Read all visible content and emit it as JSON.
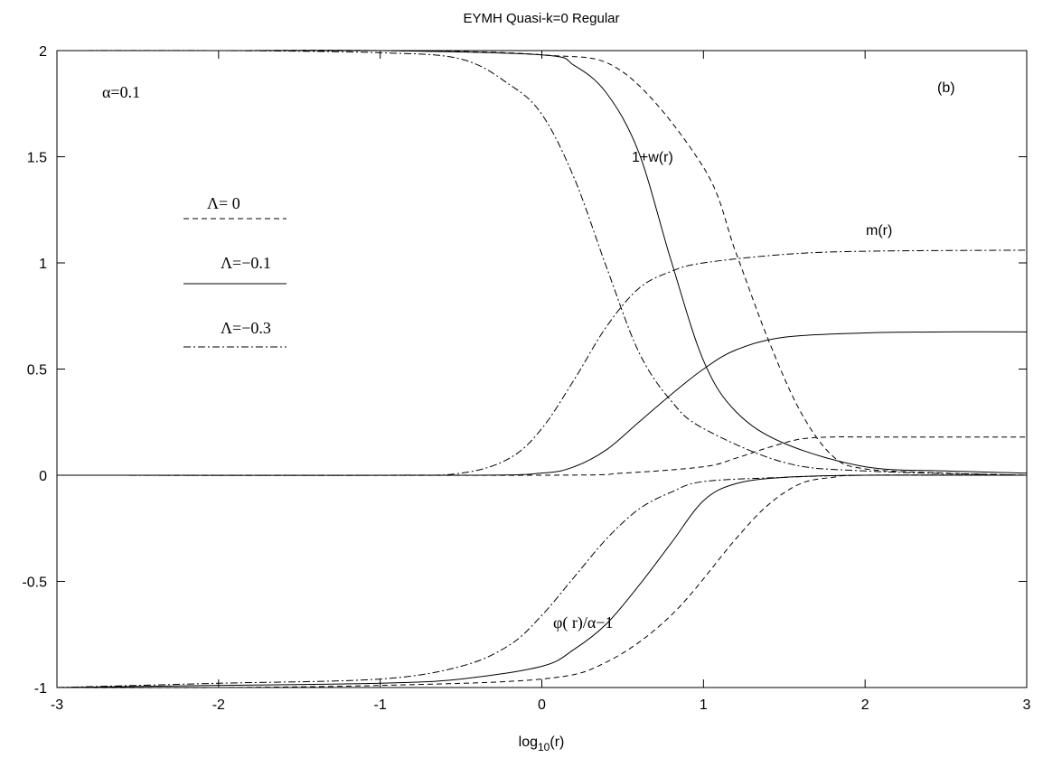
{
  "chart_data": {
    "type": "line",
    "title": "EYMH Quasi-k=0 Regular",
    "xlabel": "log10(r)",
    "xlabel_main": "log",
    "xlabel_sub": "10",
    "xlabel_tail": "(r)",
    "ylabel": "",
    "xlim": [
      -3,
      3
    ],
    "ylim": [
      -1,
      2
    ],
    "x_ticks": [
      {
        "value": -3,
        "label": "-3"
      },
      {
        "value": -2,
        "label": "-2"
      },
      {
        "value": -1,
        "label": "-1"
      },
      {
        "value": 0,
        "label": "0"
      },
      {
        "value": 1,
        "label": "1"
      },
      {
        "value": 2,
        "label": "2"
      },
      {
        "value": 3,
        "label": "3"
      }
    ],
    "y_ticks": [
      {
        "value": -1,
        "label": "-1"
      },
      {
        "value": -0.5,
        "label": "-0.5"
      },
      {
        "value": 0,
        "label": "0"
      },
      {
        "value": 0.5,
        "label": "0.5"
      },
      {
        "value": 1,
        "label": "1"
      },
      {
        "value": 1.5,
        "label": "1.5"
      },
      {
        "value": 2,
        "label": "2"
      }
    ],
    "grid": false,
    "legend_position": "left",
    "annotations": {
      "alpha": "α=0.1",
      "panel": "(b)",
      "w_curve": "1+w(r)",
      "m_curve": "m(r)",
      "phi_curve": "φ( r)/α−1"
    },
    "legend": [
      {
        "label": "Λ= 0",
        "style": "dashed"
      },
      {
        "label": "Λ=−0.1",
        "style": "solid"
      },
      {
        "label": "Λ=−0.3",
        "style": "dashdot"
      }
    ],
    "series": [
      {
        "group": "1+w(r)",
        "lambda": "Λ= 0",
        "style": "dashed",
        "x": [
          -3,
          -2,
          -1,
          0,
          0.5,
          1,
          1.2,
          1.4,
          1.6,
          1.8,
          2,
          2.5,
          3
        ],
        "y": [
          2,
          2,
          2,
          1.98,
          1.9,
          1.45,
          1.05,
          0.64,
          0.3,
          0.09,
          0.03,
          0.01,
          0
        ]
      },
      {
        "group": "1+w(r)",
        "lambda": "Λ=−0.1",
        "style": "solid",
        "x": [
          -3,
          -2,
          -1,
          0,
          0.2,
          0.4,
          0.6,
          0.8,
          1,
          1.2,
          1.5,
          2,
          2.5,
          3
        ],
        "y": [
          2,
          2,
          2,
          1.98,
          1.93,
          1.8,
          1.52,
          1.01,
          0.54,
          0.3,
          0.15,
          0.04,
          0.02,
          0.01
        ]
      },
      {
        "group": "1+w(r)",
        "lambda": "Λ=−0.3",
        "style": "dashdot",
        "x": [
          -3,
          -2,
          -1,
          -0.5,
          -0.2,
          0,
          0.2,
          0.4,
          0.6,
          0.8,
          1,
          1.5,
          2,
          3
        ],
        "y": [
          2,
          2,
          1.99,
          1.96,
          1.84,
          1.7,
          1.4,
          0.98,
          0.58,
          0.35,
          0.22,
          0.06,
          0.02,
          0
        ]
      },
      {
        "group": "m(r)",
        "lambda": "Λ= 0",
        "style": "dashed",
        "x": [
          -3,
          0,
          0.5,
          1,
          1.2,
          1.4,
          1.6,
          1.8,
          2,
          2.5,
          3
        ],
        "y": [
          0,
          0,
          0.01,
          0.04,
          0.08,
          0.13,
          0.17,
          0.18,
          0.18,
          0.18,
          0.18
        ]
      },
      {
        "group": "m(r)",
        "lambda": "Λ=−0.1",
        "style": "solid",
        "x": [
          -3,
          -0.5,
          0,
          0.2,
          0.4,
          0.6,
          0.8,
          1,
          1.2,
          1.5,
          2,
          2.5,
          3
        ],
        "y": [
          0,
          0,
          0.01,
          0.04,
          0.12,
          0.25,
          0.38,
          0.5,
          0.59,
          0.65,
          0.67,
          0.675,
          0.675
        ]
      },
      {
        "group": "m(r)",
        "lambda": "Λ=−0.3",
        "style": "dashdot",
        "x": [
          -3,
          -1,
          -0.5,
          -0.2,
          0,
          0.2,
          0.4,
          0.6,
          0.8,
          1,
          1.5,
          2,
          3
        ],
        "y": [
          0,
          0,
          0.01,
          0.08,
          0.22,
          0.45,
          0.7,
          0.88,
          0.96,
          1,
          1.04,
          1.055,
          1.06
        ]
      },
      {
        "group": "φ(r)/α−1",
        "lambda": "Λ= 0",
        "style": "dashed",
        "x": [
          -3,
          -2,
          -1,
          0,
          0.4,
          0.8,
          1.2,
          1.4,
          1.6,
          1.8,
          2,
          3
        ],
        "y": [
          -1,
          -1,
          -0.99,
          -0.96,
          -0.88,
          -0.66,
          -0.3,
          -0.14,
          -0.04,
          -0.01,
          0,
          0
        ]
      },
      {
        "group": "φ(r)/α−1",
        "lambda": "Λ=−0.1",
        "style": "solid",
        "x": [
          -3,
          -2,
          -1,
          -0.5,
          0,
          0.2,
          0.4,
          0.6,
          0.8,
          1,
          1.2,
          1.5,
          2,
          3
        ],
        "y": [
          -1,
          -0.99,
          -0.98,
          -0.96,
          -0.9,
          -0.82,
          -0.7,
          -0.52,
          -0.32,
          -0.12,
          -0.04,
          -0.01,
          0,
          0
        ]
      },
      {
        "group": "φ(r)/α−1",
        "lambda": "Λ=−0.3",
        "style": "dashdot",
        "x": [
          -3,
          -2,
          -1,
          -0.5,
          -0.2,
          0,
          0.2,
          0.4,
          0.6,
          0.8,
          1,
          1.5,
          2,
          3
        ],
        "y": [
          -1,
          -0.98,
          -0.96,
          -0.9,
          -0.8,
          -0.66,
          -0.48,
          -0.3,
          -0.16,
          -0.08,
          -0.03,
          -0.01,
          0,
          0
        ]
      }
    ],
    "styles": {
      "dashed": "6,4",
      "solid": "",
      "dashdot": "8,3,2,3"
    },
    "colors": {
      "line": "#000000",
      "background": "#ffffff"
    }
  }
}
